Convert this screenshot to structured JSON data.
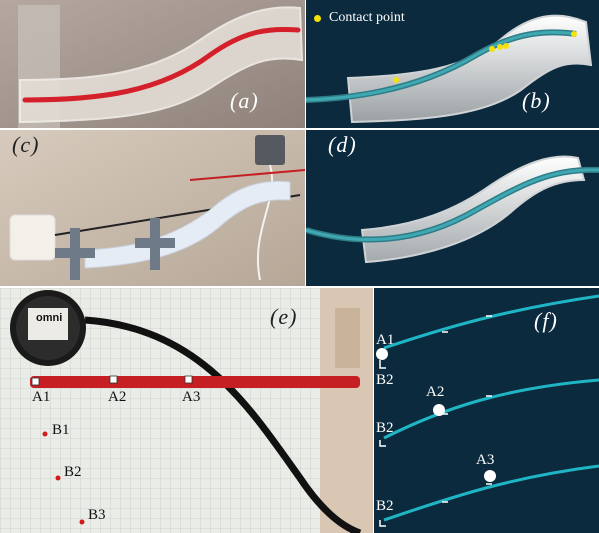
{
  "panels": {
    "a": {
      "label": "(a)"
    },
    "b": {
      "label": "(b)",
      "legend": "Contact point"
    },
    "c": {
      "label": "(c)"
    },
    "d": {
      "label": "(d)"
    },
    "e": {
      "label": "(e)",
      "device_brand": "omni",
      "markers_a": [
        "A1",
        "A2",
        "A3"
      ],
      "markers_b": [
        "B1",
        "B2",
        "B3"
      ]
    },
    "f": {
      "label": "(f)",
      "rows": [
        {
          "a": "A1",
          "b": "B2"
        },
        {
          "a": "A2",
          "b": "B2"
        },
        {
          "a": "A3",
          "b": "B2"
        }
      ]
    }
  },
  "colors": {
    "navy": "#0b2a3e",
    "cyan": "#1fb5c4",
    "red": "#c51f24",
    "yellow": "#f6e20a"
  }
}
